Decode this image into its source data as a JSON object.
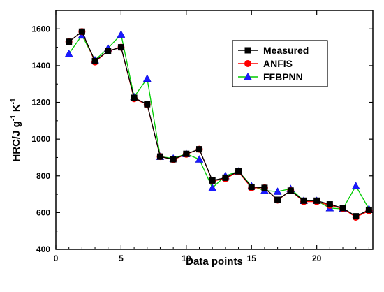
{
  "chart_data": {
    "type": "line",
    "xlabel": "Data points",
    "ylabel": "HRC/J g-1 K-1",
    "ylabel_parts": {
      "main": "HRC/J g",
      "exp1": "-1",
      "mid": " K",
      "exp2": "-1"
    },
    "xlim": [
      0,
      24.3
    ],
    "ylim": [
      400,
      1700
    ],
    "x_ticks": [
      0,
      5,
      10,
      15,
      20
    ],
    "y_ticks": [
      400,
      600,
      800,
      1000,
      1200,
      1400,
      1600
    ],
    "x_tick_labels": [
      "0",
      "5",
      "10",
      "15",
      "20"
    ],
    "y_tick_labels": [
      "400",
      "600",
      "800",
      "1000",
      "1200",
      "1400",
      "1600"
    ],
    "legend_position": "top-right",
    "grid": false,
    "x": [
      1,
      2,
      3,
      4,
      5,
      6,
      7,
      8,
      9,
      10,
      11,
      12,
      13,
      14,
      15,
      16,
      17,
      18,
      19,
      20,
      21,
      22,
      23,
      24
    ],
    "series": [
      {
        "name": "Measured",
        "color": "#000000",
        "marker": "square",
        "values": [
          1530,
          1585,
          1425,
          1480,
          1500,
          1225,
          1190,
          905,
          890,
          920,
          945,
          775,
          790,
          825,
          740,
          735,
          670,
          720,
          665,
          665,
          645,
          625,
          580,
          615
        ]
      },
      {
        "name": "ANFIS",
        "color": "#ff0000",
        "marker": "circle",
        "values": [
          1530,
          1585,
          1420,
          1480,
          1500,
          1220,
          1188,
          905,
          888,
          918,
          945,
          772,
          785,
          822,
          735,
          735,
          668,
          720,
          660,
          660,
          640,
          622,
          575,
          610
        ]
      },
      {
        "name": "FFBPNN",
        "color": "#00cc00",
        "marker": "triangle",
        "values": [
          1465,
          1565,
          1430,
          1495,
          1570,
          1230,
          1330,
          905,
          895,
          920,
          890,
          735,
          800,
          825,
          745,
          720,
          715,
          730,
          665,
          665,
          625,
          620,
          745,
          620
        ]
      }
    ]
  }
}
